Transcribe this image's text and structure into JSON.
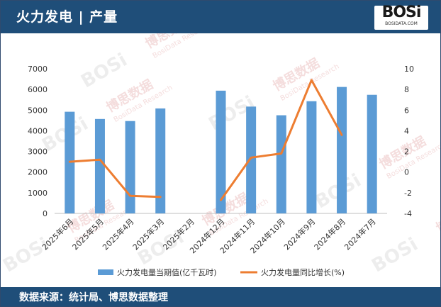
{
  "header": {
    "title": "火力发电 | 产量"
  },
  "logo": {
    "brand": "BOSi",
    "domain": "BOSIDATA.COM"
  },
  "footer": {
    "source": "数据来源：统计局、博思数据整理"
  },
  "colors": {
    "header_bg": "#1f4e79",
    "bar": "#5b9bd5",
    "line": "#ed7d31",
    "watermark": "#e8b4b4"
  },
  "watermark": {
    "text": "博思数据",
    "subtext": "BosiData Research"
  },
  "chart_data": {
    "type": "bar",
    "categories": [
      "2025年6月",
      "2025年5月",
      "2025年4月",
      "2025年3月",
      "2025年2月",
      "2024年12月",
      "2024年11月",
      "2024年10月",
      "2024年9月",
      "2024年8月",
      "2024年7月"
    ],
    "series": [
      {
        "name": "火力发电量当期值(亿千瓦时)",
        "type": "bar",
        "axis": "left",
        "values": [
          4920,
          4570,
          4470,
          5080,
          null,
          5940,
          5170,
          4750,
          5430,
          6120,
          5740
        ]
      },
      {
        "name": "火力发电量同比增长(%)",
        "type": "line",
        "axis": "right",
        "values": [
          1.0,
          1.2,
          -2.3,
          -2.4,
          null,
          -2.7,
          1.4,
          1.8,
          8.9,
          3.6,
          null
        ]
      }
    ],
    "y_left": {
      "min": 0,
      "max": 7000,
      "ticks": [
        0,
        1000,
        2000,
        3000,
        4000,
        5000,
        6000,
        7000
      ]
    },
    "y_right": {
      "min": -4,
      "max": 10,
      "ticks": [
        -4,
        -2,
        0,
        2,
        4,
        6,
        8,
        10
      ]
    },
    "grid": false,
    "legend_position": "bottom"
  }
}
